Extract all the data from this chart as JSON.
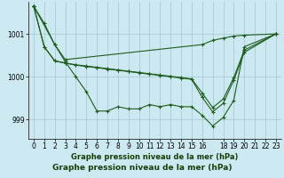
{
  "title": "Graphe pression niveau de la mer (hPa)",
  "background_color": "#cce8f0",
  "grid_color": "#aaccd8",
  "line_color": "#1e5c1e",
  "xlim": [
    -0.5,
    23.5
  ],
  "ylim": [
    998.55,
    1001.75
  ],
  "yticks": [
    999,
    1000,
    1001
  ],
  "xtick_positions": [
    0,
    1,
    2,
    3,
    4,
    5,
    6,
    7,
    8,
    9,
    10,
    11,
    12,
    13,
    14,
    15,
    16,
    18,
    19,
    20,
    21,
    22,
    23
  ],
  "xtick_labels": [
    "0",
    "1",
    "2",
    "3",
    "4",
    "5",
    "6",
    "7",
    "8",
    "9",
    "10",
    "11",
    "12",
    "13",
    "14",
    "15",
    "16",
    "18",
    "19",
    "20",
    "21",
    "22",
    "23"
  ],
  "series": [
    {
      "x": [
        0,
        1,
        2,
        3,
        4,
        5,
        6,
        7,
        8,
        9,
        10,
        11,
        12,
        13,
        14,
        15,
        16,
        17,
        18,
        19,
        20,
        23
      ],
      "y": [
        1001.65,
        1001.25,
        1000.75,
        1000.35,
        1000.0,
        999.65,
        999.2,
        999.2,
        999.3,
        999.25,
        999.25,
        999.35,
        999.3,
        999.35,
        999.3,
        999.3,
        999.1,
        998.85,
        999.05,
        999.45,
        1000.7,
        1001.0
      ]
    },
    {
      "x": [
        0,
        2,
        3,
        16,
        17,
        18,
        19,
        20,
        23
      ],
      "y": [
        1001.65,
        1000.75,
        1000.4,
        1000.75,
        1000.85,
        1000.9,
        1000.95,
        1000.97,
        1001.0
      ]
    },
    {
      "x": [
        0,
        1,
        2,
        3,
        4,
        5,
        6,
        7,
        8,
        9,
        10,
        11,
        12,
        13,
        14,
        15,
        16,
        17,
        18,
        19,
        20,
        23
      ],
      "y": [
        1001.65,
        1000.7,
        1000.37,
        1000.32,
        1000.28,
        1000.25,
        1000.22,
        1000.19,
        1000.16,
        1000.13,
        1000.1,
        1000.07,
        1000.04,
        1000.01,
        999.98,
        999.95,
        999.62,
        999.28,
        999.48,
        999.98,
        1000.62,
        1001.0
      ]
    },
    {
      "x": [
        0,
        1,
        2,
        3,
        4,
        5,
        6,
        7,
        8,
        9,
        10,
        11,
        12,
        13,
        14,
        15,
        16,
        17,
        18,
        19,
        20,
        23
      ],
      "y": [
        1001.65,
        1000.7,
        1000.37,
        1000.32,
        1000.27,
        1000.24,
        1000.21,
        1000.18,
        1000.15,
        1000.12,
        1000.09,
        1000.06,
        1000.03,
        1000.0,
        999.97,
        999.94,
        999.52,
        999.18,
        999.38,
        999.92,
        1000.57,
        1001.0
      ]
    }
  ]
}
